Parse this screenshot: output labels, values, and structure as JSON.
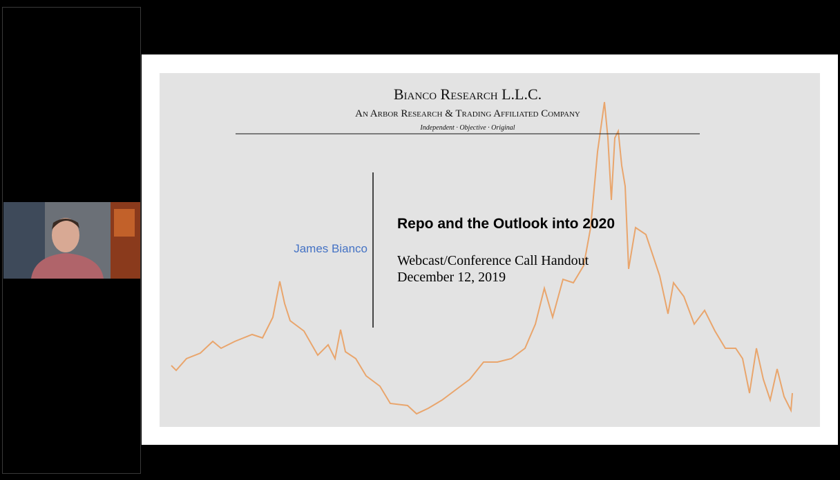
{
  "slide": {
    "company": "Bianco Research L.L.C.",
    "affiliation": "An Arbor Research & Trading Affiliated Company",
    "motto": "Independent · Objective · Original",
    "presenter": "James Bianco",
    "title": "Repo and the Outlook into 2020",
    "subtitle": "Webcast/Conference Call Handout",
    "date": "December 12, 2019"
  }
}
